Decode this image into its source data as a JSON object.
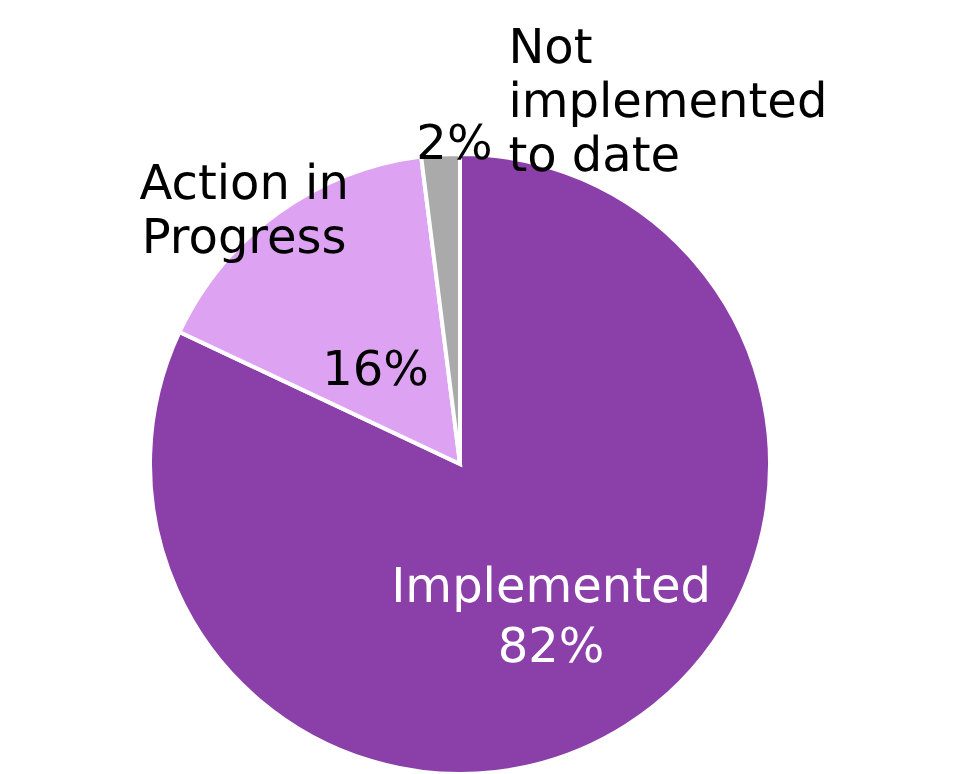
{
  "chart_data": {
    "type": "pie",
    "categories": [
      "Implemented",
      "Action in Progress",
      "Not implemented to date"
    ],
    "values": [
      82,
      16,
      2
    ],
    "colors": [
      "#8b3fa8",
      "#dda2f2",
      "#aaaaaa"
    ],
    "value_labels": [
      "82%",
      "16%",
      "2%"
    ]
  }
}
